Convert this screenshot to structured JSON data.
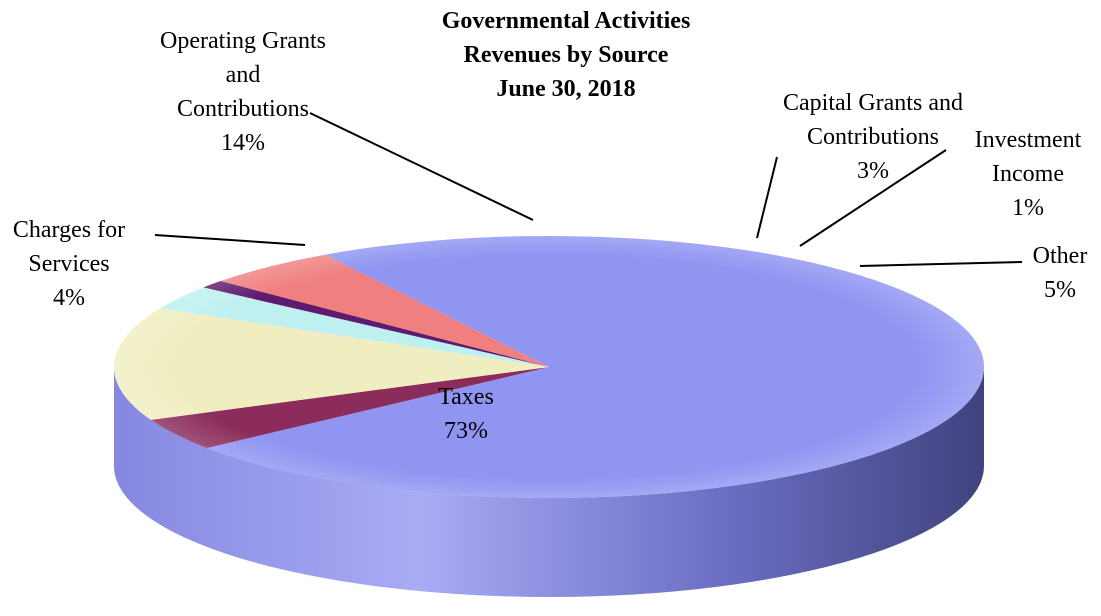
{
  "chart_data": {
    "type": "pie",
    "title_lines": [
      "Governmental Activities",
      "Revenues by Source",
      "June 30, 2018"
    ],
    "slices": [
      {
        "name": "Taxes",
        "label_lines": [
          "Taxes",
          "73%"
        ],
        "value": 73,
        "color": "#9095f2"
      },
      {
        "name": "Charges for Services",
        "label_lines": [
          "Charges for",
          "Services",
          "4%"
        ],
        "value": 4,
        "color": "#8b2c5a"
      },
      {
        "name": "Operating Grants and Contributions",
        "label_lines": [
          "Operating Grants",
          "and",
          "Contributions",
          "14%"
        ],
        "value": 14,
        "color": "#f0eec0"
      },
      {
        "name": "Capital Grants and Contributions",
        "label_lines": [
          "Capital Grants and",
          "Contributions",
          "3%"
        ],
        "value": 3,
        "color": "#bff0f0"
      },
      {
        "name": "Investment Income",
        "label_lines": [
          "Investment",
          "Income",
          "1%"
        ],
        "value": 1,
        "color": "#5e1a6e"
      },
      {
        "name": "Other",
        "label_lines": [
          "Other",
          "5%"
        ],
        "value": 5,
        "color": "#f08080"
      }
    ],
    "edge_color": "#6d6fc7",
    "legend": "none",
    "three_d": true
  }
}
